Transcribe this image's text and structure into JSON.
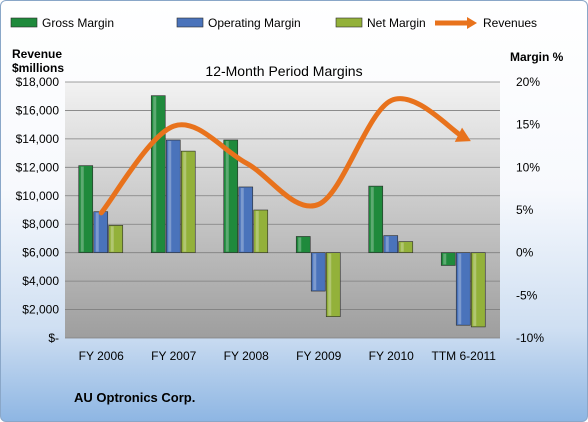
{
  "chart_data": {
    "type": "bar",
    "title": "12-Month Period Margins",
    "left_axis_title_line1": "Revenue",
    "left_axis_title_line2": "$millions",
    "right_axis_title": "Margin %",
    "company": "AU Optronics Corp.",
    "categories": [
      "FY 2006",
      "FY 2007",
      "FY 2008",
      "FY 2009",
      "FY 2010",
      "TTM 6-2011"
    ],
    "left_ticks": [
      "$-",
      "$2,000",
      "$4,000",
      "$6,000",
      "$8,000",
      "$10,000",
      "$12,000",
      "$14,000",
      "$16,000",
      "$18,000"
    ],
    "right_ticks": [
      "-10%",
      "-5%",
      "0%",
      "5%",
      "10%",
      "15%",
      "20%"
    ],
    "left_ylim": [
      0,
      18000
    ],
    "right_ylim": [
      -10,
      20
    ],
    "grid": true,
    "legend_position": "top",
    "series": [
      {
        "name": "Gross Margin",
        "type": "bar",
        "axis": "right",
        "color": "#1f8a3c",
        "values": [
          10.2,
          18.4,
          13.2,
          1.9,
          7.8,
          -1.5
        ]
      },
      {
        "name": "Operating Margin",
        "type": "bar",
        "axis": "right",
        "color": "#4a73bb",
        "values": [
          4.8,
          13.2,
          7.7,
          -4.5,
          2.0,
          -8.5
        ]
      },
      {
        "name": "Net Margin",
        "type": "bar",
        "axis": "right",
        "color": "#93b13a",
        "values": [
          3.2,
          11.9,
          5.0,
          -7.5,
          1.3,
          -8.7
        ]
      },
      {
        "name": "Revenues",
        "type": "line",
        "axis": "left",
        "color": "#e8721c",
        "values": [
          8800,
          14900,
          12300,
          9400,
          16700,
          14100
        ]
      }
    ]
  }
}
